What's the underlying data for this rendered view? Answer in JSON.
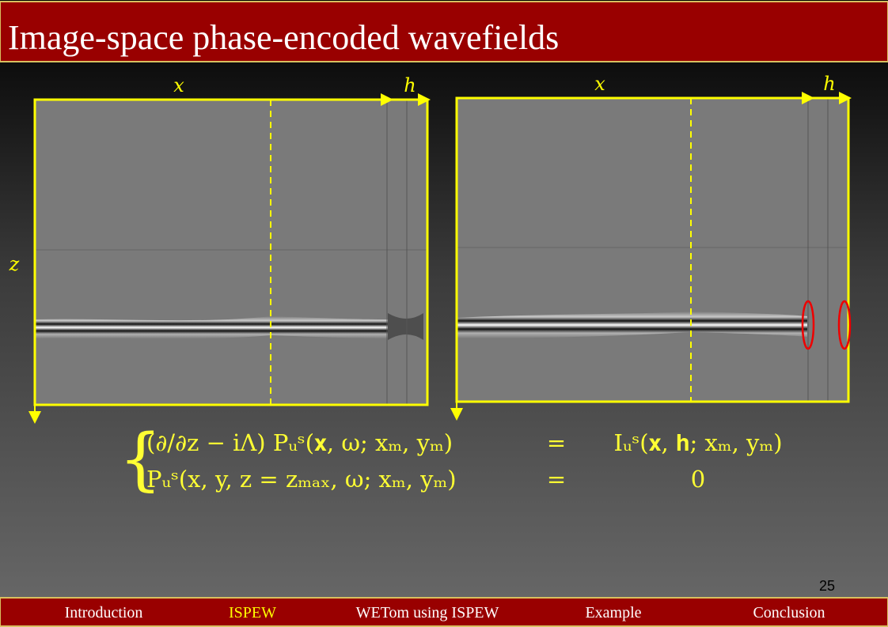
{
  "header": {
    "title": "Image-space phase-encoded wavefields"
  },
  "panels": [
    {
      "x_label": "x",
      "h_label": "h",
      "z_label": "z"
    },
    {
      "x_label": "x",
      "h_label": "h"
    }
  ],
  "equation": {
    "rows": [
      {
        "lhs": "(∂/∂z − iΛ) Pᵤˢ(𝐱, ω; xₘ, yₘ)",
        "eq": "=",
        "rhs": "Iᵤˢ(𝐱, 𝐡; xₘ, yₘ)"
      },
      {
        "lhs": "Pᵤˢ(x, y, z = zₘₐₓ, ω; xₘ, yₘ)",
        "eq": "=",
        "rhs": "0"
      }
    ]
  },
  "page_number": "25",
  "nav": {
    "items": [
      "Introduction",
      "ISPEW",
      "WETom using ISPEW",
      "Example",
      "Conclusion"
    ],
    "active": "ISPEW"
  }
}
